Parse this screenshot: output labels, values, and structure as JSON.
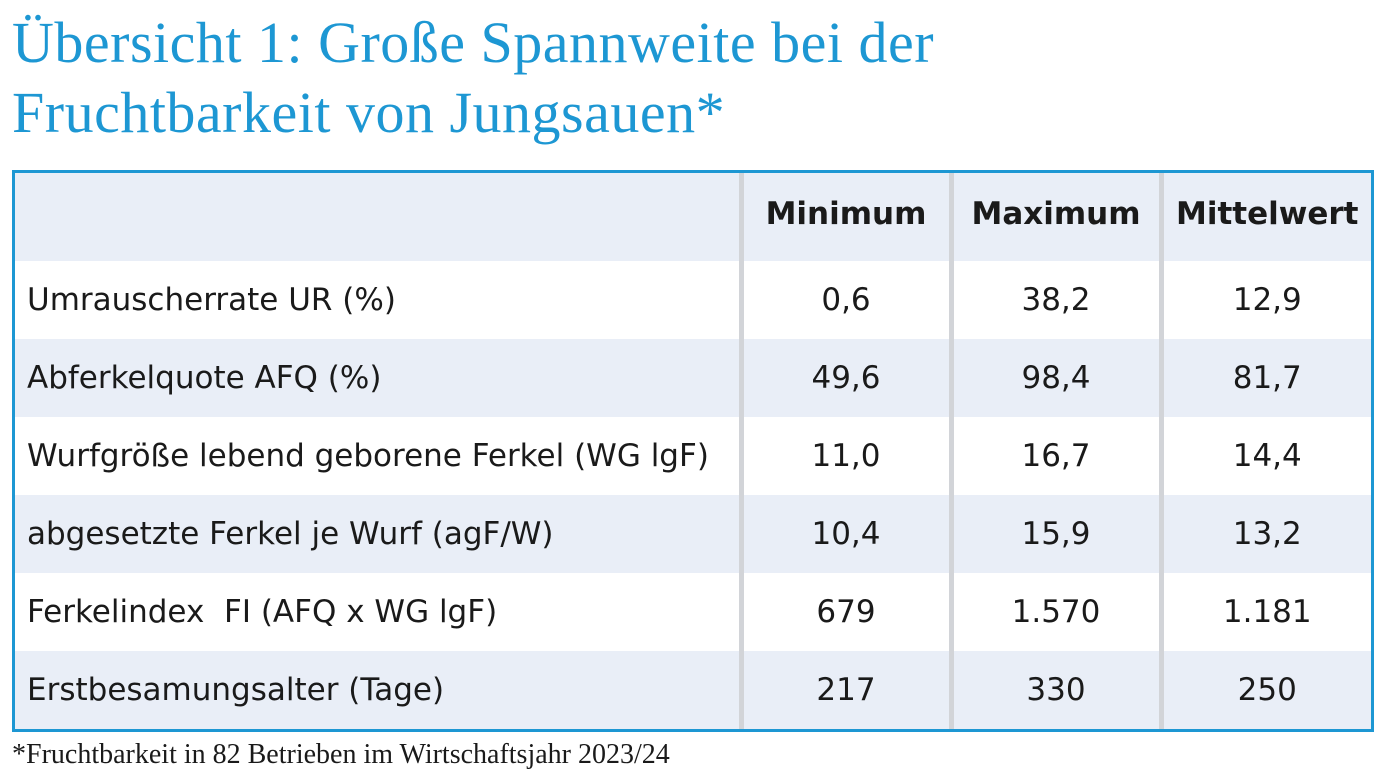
{
  "title": {
    "line1": "Übersicht 1: Große Spannweite bei der",
    "line2": "Fruchtbarkeit von Jungsauen*"
  },
  "table": {
    "headers": [
      "",
      "Minimum",
      "Maximum",
      "Mittelwert"
    ],
    "rows": [
      {
        "label": "Umrauscherrate UR (%)",
        "min": "0,6",
        "max": "38,2",
        "mean": "12,9"
      },
      {
        "label": "Abferkelquote AFQ (%)",
        "min": "49,6",
        "max": "98,4",
        "mean": "81,7"
      },
      {
        "label": "Wurfgröße lebend geborene Ferkel (WG lgF)",
        "min": "11,0",
        "max": "16,7",
        "mean": "14,4"
      },
      {
        "label": "abgesetzte Ferkel je Wurf (agF/W)",
        "min": "10,4",
        "max": "15,9",
        "mean": "13,2"
      },
      {
        "label": "Ferkelindex  FI (AFQ x WG lgF)",
        "min": "679",
        "max": "1.570",
        "mean": "1.181"
      },
      {
        "label": "Erstbesamungsalter (Tage)",
        "min": "217",
        "max": "330",
        "mean": "250"
      }
    ]
  },
  "footnote": "*Fruchtbarkeit in 82 Betrieben im Wirtschaftsjahr 2023/24",
  "colors": {
    "accent": "#1d97d3",
    "row_shade": "#e9eef7",
    "column_separator": "#d2d4d8",
    "text": "#1a1a1a"
  }
}
